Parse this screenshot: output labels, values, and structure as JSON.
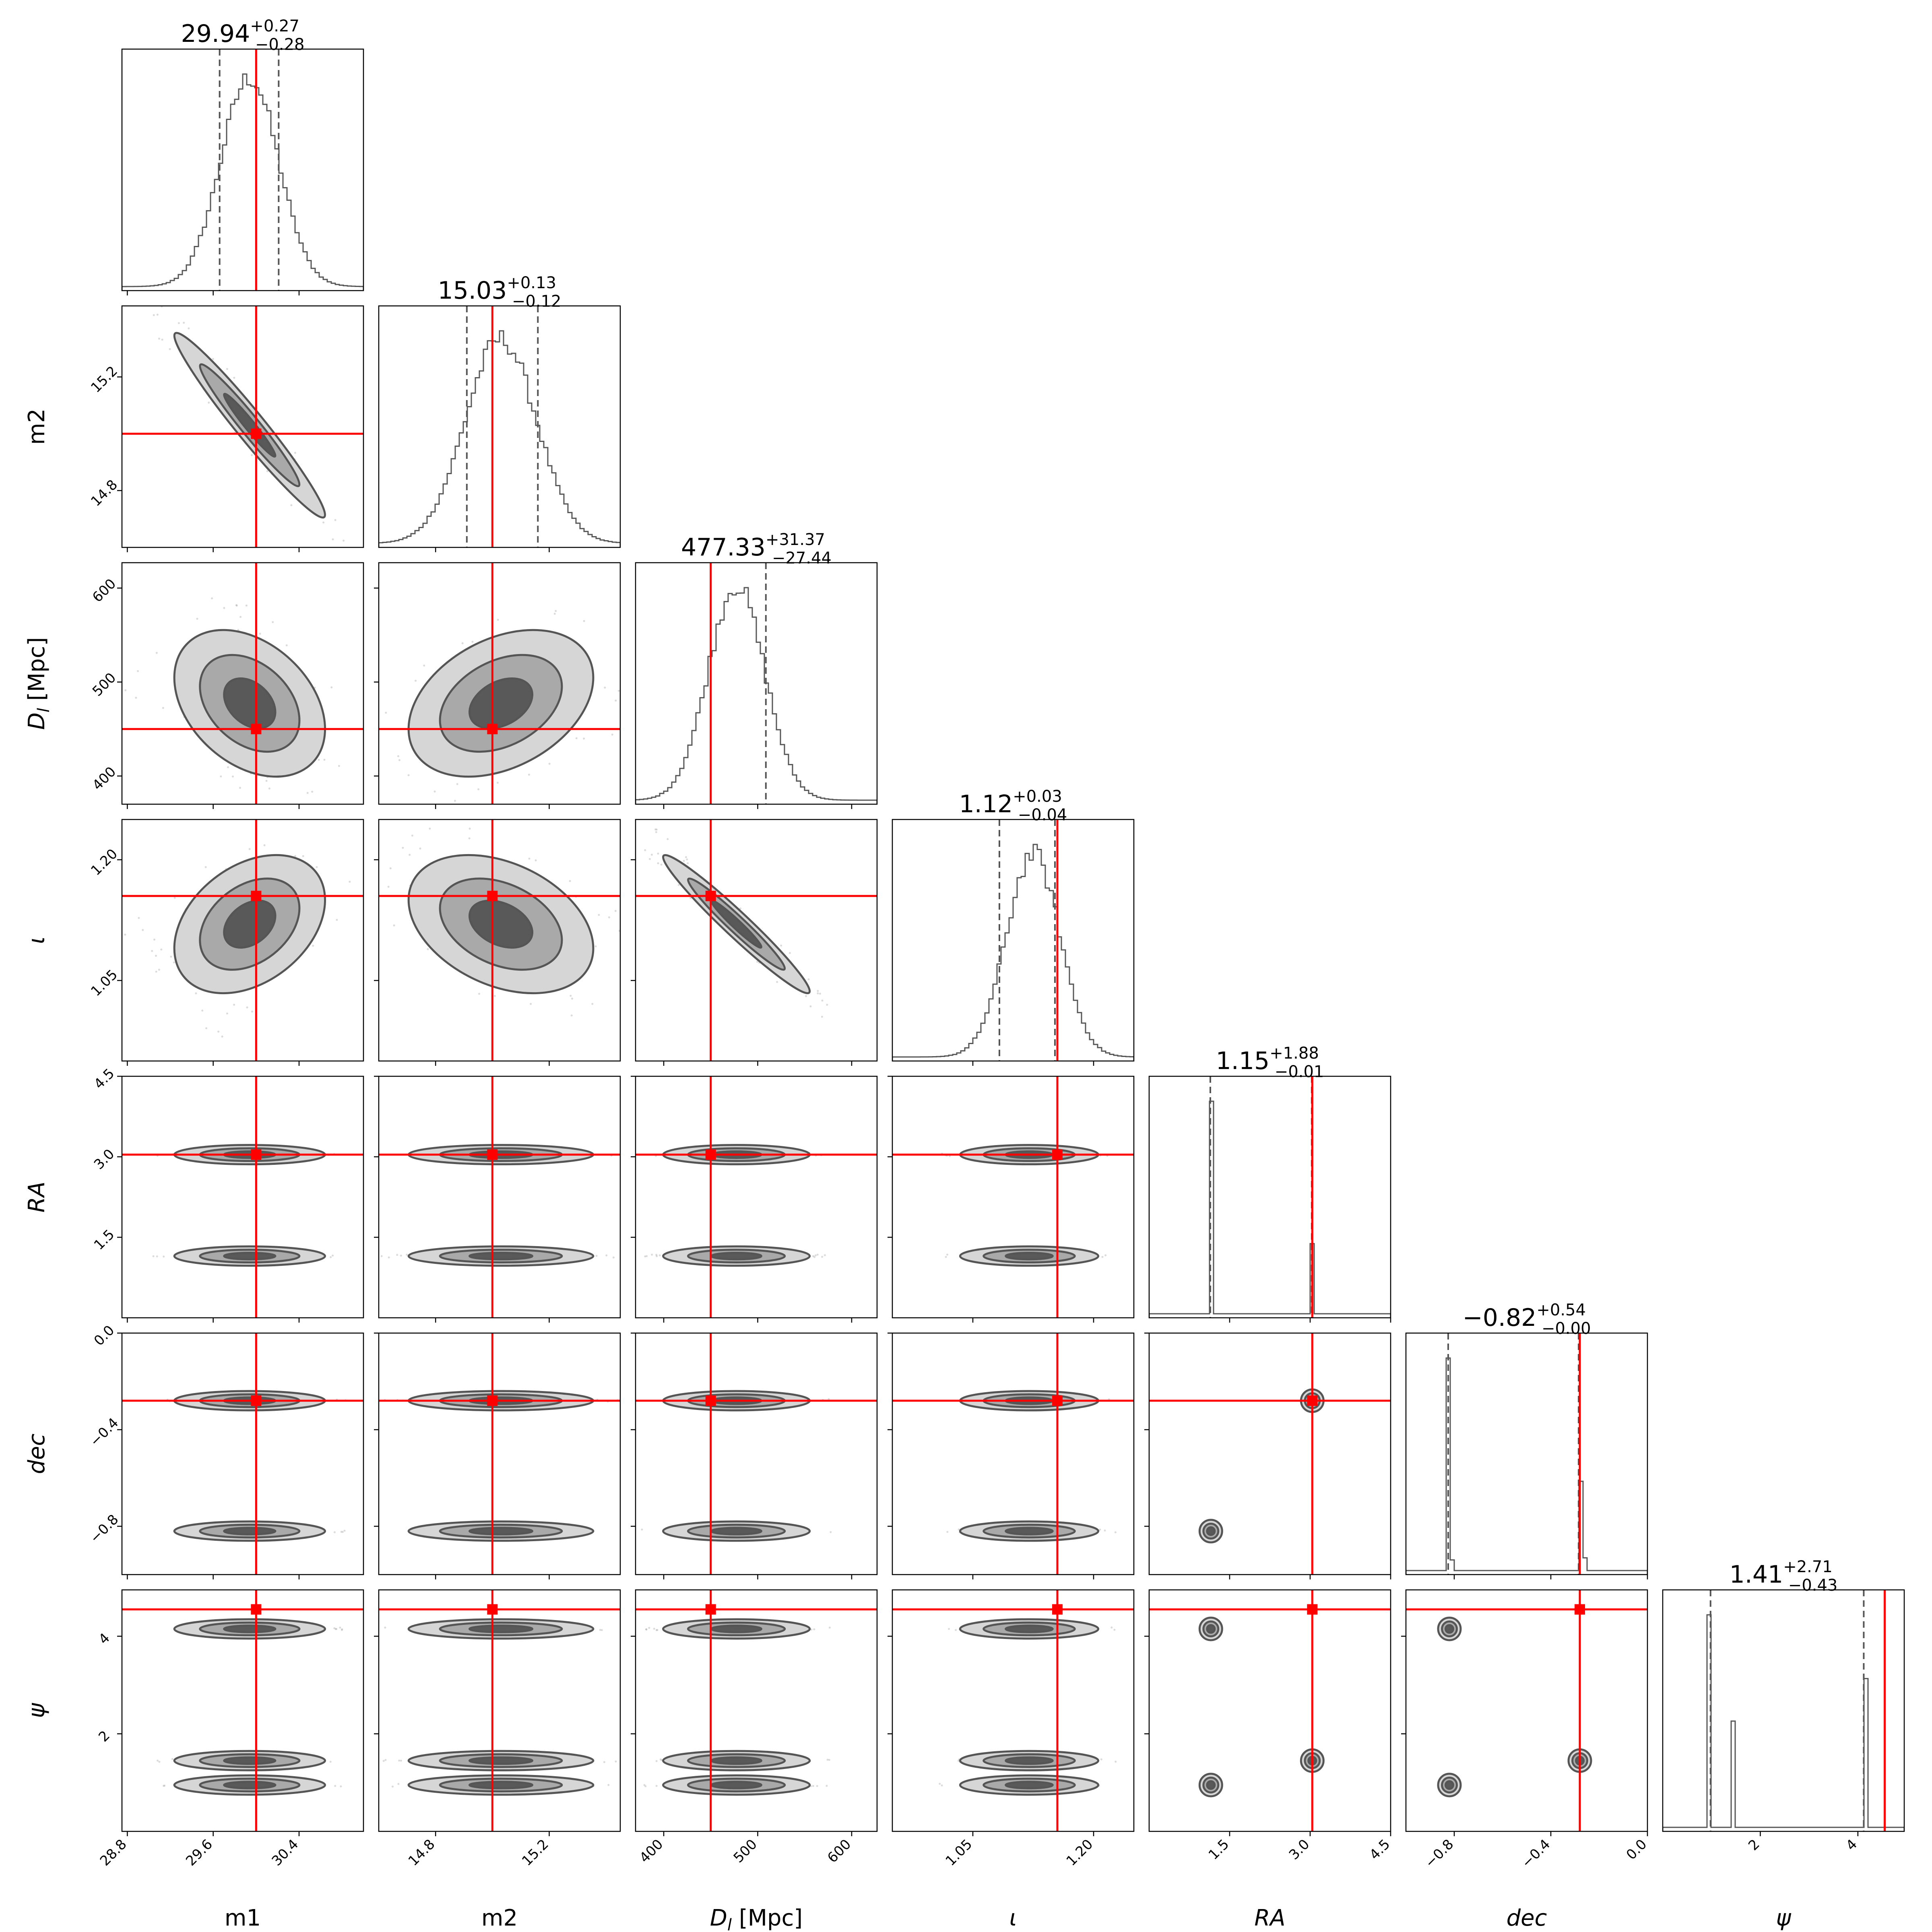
{
  "figure": {
    "type": "corner"
  },
  "colors": {
    "truth": "#ff0000",
    "histogram": "#555555",
    "contour_levels": [
      "#d6d6d6",
      "#a9a9a9",
      "#595959"
    ]
  },
  "chart_data": {
    "type": "corner",
    "parameters": [
      {
        "key": "m1",
        "label": "m1",
        "italic": false,
        "range": [
          28.75,
          31.0
        ],
        "ticks": [
          28.8,
          29.6,
          30.4
        ],
        "tick_labels": [
          "28.8",
          "29.6",
          "30.4"
        ],
        "truth": 30.0,
        "median": 29.94,
        "plus": "+0.27",
        "minus": "−0.28",
        "title_value": "29.94",
        "q_lo": 29.66,
        "q_hi": 30.21,
        "sigma": 0.27,
        "hist_shape": "gaussian"
      },
      {
        "key": "m2",
        "label": "m2",
        "italic": false,
        "range": [
          14.6,
          15.45
        ],
        "ticks": [
          14.8,
          15.2
        ],
        "tick_labels": [
          "14.8",
          "15.2"
        ],
        "truth": 15.0,
        "median": 15.03,
        "plus": "+0.13",
        "minus": "−0.12",
        "title_value": "15.03",
        "q_lo": 14.91,
        "q_hi": 15.16,
        "sigma": 0.125,
        "hist_shape": "gaussian"
      },
      {
        "key": "dl",
        "label": "D_l [Mpc]",
        "italic": true,
        "range": [
          370,
          627
        ],
        "ticks": [
          400,
          500,
          600
        ],
        "tick_labels": [
          "400",
          "500",
          "600"
        ],
        "truth": 450,
        "median": 477.33,
        "plus": "+31.37",
        "minus": "−27.44",
        "title_value": "477.33",
        "q_lo": 449.9,
        "q_hi": 508.7,
        "sigma": 30,
        "hist_shape": "gaussian"
      },
      {
        "key": "iota",
        "label": "ι",
        "italic": true,
        "range": [
          0.95,
          1.25
        ],
        "ticks": [
          1.05,
          1.2
        ],
        "tick_labels": [
          "1.05",
          "1.20"
        ],
        "truth": 1.155,
        "median": 1.12,
        "plus": "+0.03",
        "minus": "−0.04",
        "title_value": "1.12",
        "q_lo": 1.083,
        "q_hi": 1.152,
        "sigma": 0.033,
        "hist_shape": "gaussian"
      },
      {
        "key": "ra",
        "label": "RA",
        "italic": true,
        "range": [
          0.0,
          4.5
        ],
        "ticks": [
          1.5,
          3.0,
          4.5
        ],
        "tick_labels": [
          "1.5",
          "3.0",
          "4.5"
        ],
        "truth": 3.04,
        "median": 1.15,
        "plus": "+1.88",
        "minus": "−0.01",
        "title_value": "1.15",
        "q_lo": 1.14,
        "q_hi": 3.03,
        "modes": [
          1.15,
          3.04
        ],
        "hist_shape": "spikes",
        "spike_heights": [
          1.0,
          0.33
        ]
      },
      {
        "key": "dec",
        "label": "dec",
        "italic": true,
        "range": [
          -1.0,
          0.0
        ],
        "ticks": [
          -0.8,
          -0.4,
          0.0
        ],
        "tick_labels": [
          "−0.8",
          "−0.4",
          "0.0"
        ],
        "truth": -0.28,
        "median": -0.82,
        "plus": "+0.54",
        "minus": "−0.00",
        "title_value": "−0.82",
        "q_lo": -0.825,
        "q_hi": -0.285,
        "modes": [
          -0.82,
          -0.28
        ],
        "hist_shape": "spikes",
        "spike_heights": [
          1.0,
          0.42
        ]
      },
      {
        "key": "psi",
        "label": "ψ",
        "italic": true,
        "range": [
          0.0,
          4.95
        ],
        "ticks": [
          2,
          4
        ],
        "tick_labels": [
          "2",
          "4"
        ],
        "truth": 4.55,
        "median": 1.41,
        "plus": "+2.71",
        "minus": "−0.43",
        "title_value": "1.41",
        "q_lo": 0.98,
        "q_hi": 4.12,
        "modes": [
          0.95,
          1.45,
          4.15
        ],
        "hist_shape": "spikes",
        "spike_heights": [
          1.0,
          0.5,
          0.7
        ]
      }
    ],
    "correlations": {
      "m1|m2": -0.97,
      "m1|dl": -0.35,
      "m2|dl": 0.35,
      "m1|iota": 0.35,
      "m2|iota": -0.35,
      "dl|iota": -0.97
    }
  }
}
